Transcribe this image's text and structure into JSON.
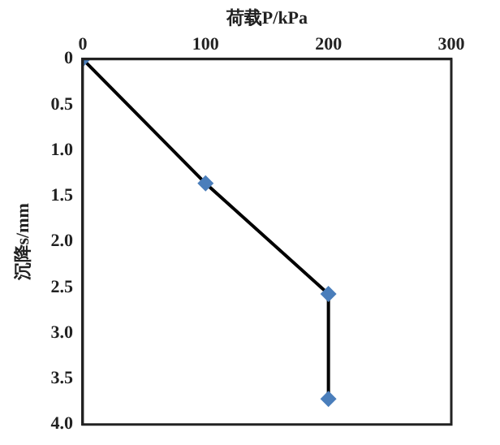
{
  "chart_data": {
    "type": "line",
    "xlabel": "荷载P/kPa",
    "ylabel": "沉降s/mm",
    "xlim": [
      0,
      300
    ],
    "xticks": [
      0,
      100,
      200,
      300
    ],
    "ylim": [
      4,
      0
    ],
    "yticks": [
      0,
      0.5,
      {
        "value": 1,
        "label": "1.0"
      },
      1.5,
      {
        "value": 2,
        "label": "2.0"
      },
      2.5,
      {
        "value": 3,
        "label": "3.0"
      },
      3.5,
      {
        "value": 4,
        "label": "4.0"
      }
    ],
    "grid": false,
    "legend": false,
    "marker": "diamond",
    "line_style": "solid",
    "series": [
      {
        "color": "#000000",
        "colors": [
          "#4a7ebb",
          "#4a7ebb",
          "#4a7ebb",
          "#4a7ebb"
        ],
        "x": [
          0,
          100,
          200,
          200
        ],
        "values": [
          0,
          1.36,
          2.57,
          3.72
        ]
      }
    ]
  }
}
